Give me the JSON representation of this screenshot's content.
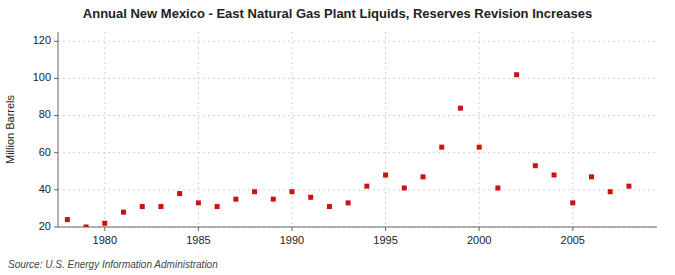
{
  "chart_data": {
    "type": "scatter",
    "title": "Annual New Mexico - East Natural Gas Plant Liquids, Reserves Revision Increases",
    "y_label": "Million Barrels",
    "annotation": "Source: U.S. Energy Information Administration",
    "x": [
      1978,
      1979,
      1980,
      1981,
      1982,
      1983,
      1984,
      1985,
      1986,
      1987,
      1988,
      1989,
      1990,
      1991,
      1992,
      1993,
      1994,
      1995,
      1996,
      1997,
      1998,
      1999,
      2000,
      2001,
      2002,
      2003,
      2004,
      2005,
      2006,
      2007,
      2008
    ],
    "values": [
      24,
      20,
      22,
      28,
      31,
      31,
      38,
      33,
      31,
      35,
      39,
      35,
      39,
      36,
      31,
      33,
      42,
      48,
      41,
      47,
      63,
      84,
      63,
      41,
      102,
      53,
      48,
      33,
      47,
      39,
      42
    ],
    "color": "#cc1111",
    "marker": "square",
    "xlim": [
      1977.5,
      2009.5
    ],
    "ylim": [
      20,
      125
    ],
    "xticks": [
      1980,
      1985,
      1990,
      1995,
      2000,
      2005
    ],
    "yticks": [
      20,
      40,
      60,
      80,
      100,
      120
    ],
    "grid": true
  }
}
